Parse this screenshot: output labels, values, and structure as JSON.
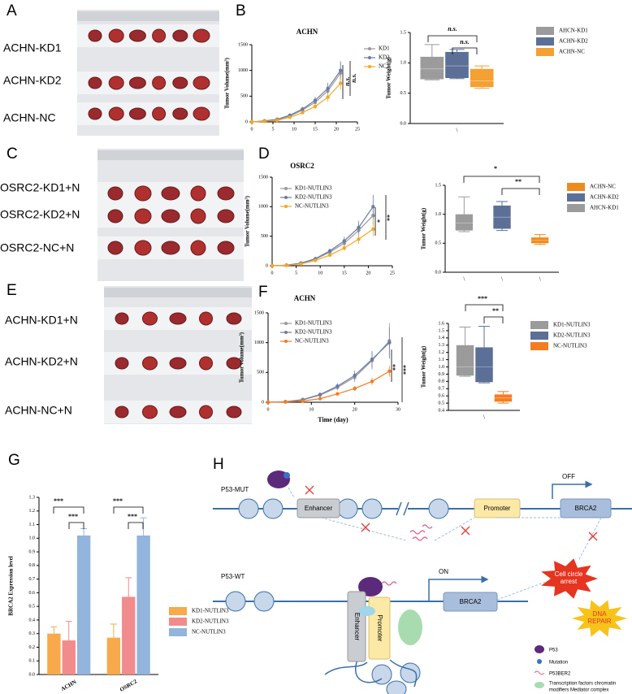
{
  "panels": {
    "A": {
      "letter": "A",
      "labels": [
        "ACHN-KD1",
        "ACHN-KD2",
        "ACHN-NC"
      ]
    },
    "C": {
      "letter": "C",
      "labels": [
        "OSRC2-KD1+N",
        "OSRC2-KD2+N",
        "OSRC2-NC+N"
      ]
    },
    "E": {
      "letter": "E",
      "labels": [
        "ACHN-KD1+N",
        "ACHN-KD2+N",
        "ACHN-NC+N"
      ]
    },
    "H": {
      "letter": "H",
      "p53_mut": "P53-MUT",
      "p53_wt": "P53-WT",
      "enhancer": "Enhancer",
      "promoter": "Promoter",
      "brca2_top": "BRCA2",
      "brca2_bottom": "BRCA2",
      "off": "OFF",
      "on": "ON",
      "enhancer_v": "Enhancer",
      "promoter_v": "Promoter",
      "arrest": [
        "Cell circle",
        "arrest"
      ],
      "repair": [
        "DNA",
        "REPAIR"
      ],
      "legend": [
        {
          "lines": [
            "P53"
          ]
        },
        {
          "lines": [
            "Mutation"
          ]
        },
        {
          "lines": [
            "P53BER2"
          ]
        },
        {
          "lines": [
            "Transcription factors chromatin",
            "modifiers Mediator complex"
          ]
        }
      ]
    }
  },
  "chart_data": [
    {
      "type": "line",
      "letter": "B",
      "title": "ACHN",
      "ylabel": "Tumor Volume(mm³)",
      "x": [
        0,
        3,
        6,
        9,
        12,
        15,
        18,
        21
      ],
      "xlim": [
        0,
        25
      ],
      "xticks": [
        0,
        5,
        10,
        15,
        20,
        25
      ],
      "ylim": [
        0,
        1500
      ],
      "yticks": [
        0,
        500,
        1000,
        1500
      ],
      "series": [
        {
          "name": "KD1",
          "color": "#9a9a9a",
          "values": [
            0,
            15,
            40,
            110,
            230,
            380,
            600,
            950
          ],
          "errors": [
            0,
            5,
            10,
            20,
            40,
            60,
            100,
            200
          ]
        },
        {
          "name": "KD2",
          "color": "#6a7ba6",
          "values": [
            0,
            20,
            50,
            130,
            250,
            420,
            650,
            1000
          ],
          "errors": [
            0,
            5,
            10,
            25,
            40,
            70,
            110,
            180
          ]
        },
        {
          "name": "NC",
          "color": "#f5a623",
          "values": [
            0,
            10,
            30,
            90,
            180,
            300,
            480,
            750
          ],
          "errors": [
            0,
            5,
            10,
            20,
            30,
            50,
            80,
            120
          ]
        }
      ],
      "annotations": [
        "n.s.",
        "n.s."
      ]
    },
    {
      "type": "box",
      "ylabel": "Tumor Weight(g)",
      "categories": [
        "\\"
      ],
      "ylim": [
        0,
        1.5
      ],
      "yticks": [
        {
          "value": 0,
          "label": "0.0"
        },
        0.5,
        {
          "value": 1,
          "label": "1.0"
        },
        1.5
      ],
      "series": [
        {
          "name": "AHCN-KD1",
          "color": "#9b9b9b",
          "values": [
            {
              "min": 0.72,
              "q1": 0.73,
              "median": 0.9,
              "q3": 1.1,
              "max": 1.3
            }
          ]
        },
        {
          "name": "ACHN-KD2",
          "color": "#5b6f97",
          "values": [
            {
              "min": 0.74,
              "q1": 0.75,
              "median": 0.95,
              "q3": 1.18,
              "max": 1.22
            }
          ]
        },
        {
          "name": "ACHN-NC",
          "color": "#f5a033",
          "values": [
            {
              "min": 0.58,
              "q1": 0.6,
              "median": 0.7,
              "q3": 0.9,
              "max": 0.95
            }
          ]
        }
      ],
      "annotations": [
        "n.s.",
        "n.s."
      ]
    },
    {
      "type": "line",
      "letter": "D",
      "title": "OSRC2",
      "ylabel": "Tumor Volume(mm³)",
      "x": [
        0,
        3,
        6,
        9,
        12,
        15,
        18,
        21
      ],
      "xlim": [
        0,
        25
      ],
      "xticks": [
        0,
        5,
        10,
        15,
        20,
        25
      ],
      "ylim": [
        0,
        1500
      ],
      "yticks": [
        0,
        500,
        1000,
        1500
      ],
      "series": [
        {
          "name": "KD1-NUTLIN3",
          "color": "#9a9a9a",
          "values": [
            0,
            10,
            40,
            110,
            230,
            380,
            600,
            850
          ],
          "errors": [
            0,
            5,
            10,
            20,
            40,
            60,
            100,
            150
          ]
        },
        {
          "name": "KD2-NUTLIN3",
          "color": "#6a7ba6",
          "values": [
            0,
            10,
            45,
            120,
            250,
            420,
            650,
            1000
          ],
          "errors": [
            0,
            5,
            10,
            25,
            40,
            70,
            110,
            200
          ]
        },
        {
          "name": "NC-NUTLIN3",
          "color": "#f5a623",
          "values": [
            0,
            5,
            30,
            90,
            180,
            300,
            450,
            620
          ],
          "errors": [
            0,
            5,
            10,
            20,
            30,
            50,
            80,
            120
          ]
        }
      ],
      "annotations": [
        "*",
        "**"
      ]
    },
    {
      "type": "box",
      "ylabel": "Tumor Weight(g)",
      "categories": [
        "\\",
        "\\",
        "\\"
      ],
      "ylim": [
        0,
        1.5
      ],
      "yticks": [
        {
          "value": 0,
          "label": "0.0"
        },
        0.5,
        {
          "value": 1,
          "label": "1.0"
        },
        1.5
      ],
      "series": [
        {
          "name": "ACHN-NC",
          "color": "#f08a1c",
          "values": [
            null,
            null,
            {
              "min": 0.48,
              "q1": 0.5,
              "median": 0.55,
              "q3": 0.6,
              "max": 0.65
            }
          ]
        },
        {
          "name": "ACHN-KD2",
          "color": "#5b6f97",
          "values": [
            null,
            {
              "min": 0.72,
              "q1": 0.75,
              "median": 0.95,
              "q3": 1.15,
              "max": 1.22
            },
            null
          ]
        },
        {
          "name": "AHCN-KD1",
          "color": "#9b9b9b",
          "values": [
            {
              "min": 0.7,
              "q1": 0.72,
              "median": 0.85,
              "q3": 1.0,
              "max": 1.3
            },
            null,
            null
          ]
        }
      ],
      "annotations": [
        "*",
        "**"
      ]
    },
    {
      "type": "line",
      "letter": "F",
      "title": "ACHN",
      "ylabel": "Tumor volume(mm³)",
      "xlabel": "Time (day)",
      "x": [
        0,
        4,
        8,
        12,
        16,
        20,
        24,
        28
      ],
      "xlim": [
        0,
        30
      ],
      "xticks": [
        0,
        10,
        20,
        30
      ],
      "ylim": [
        0,
        1500
      ],
      "yticks": [
        0,
        500,
        1000,
        1500
      ],
      "series": [
        {
          "name": "KD1-NUTLIN3",
          "color": "#9a9a9a",
          "values": [
            0,
            10,
            40,
            120,
            250,
            420,
            700,
            1030
          ],
          "errors": [
            0,
            5,
            10,
            30,
            50,
            80,
            150,
            300
          ]
        },
        {
          "name": "KD2-NUTLIN3",
          "color": "#6a7ba6",
          "values": [
            0,
            10,
            45,
            130,
            270,
            450,
            720,
            1000
          ],
          "errors": [
            0,
            5,
            10,
            30,
            50,
            80,
            140,
            260
          ]
        },
        {
          "name": "NC-NUTLIN3",
          "color": "#f57c1f",
          "values": [
            0,
            5,
            20,
            60,
            140,
            230,
            350,
            520
          ],
          "errors": [
            0,
            3,
            8,
            15,
            25,
            40,
            60,
            90
          ]
        }
      ],
      "annotations": [
        "**",
        "***"
      ]
    },
    {
      "type": "box",
      "ylabel": "Tumor Weight(g)",
      "categories": [
        "\\"
      ],
      "ylim": [
        0.4,
        1.6
      ],
      "yticks": [
        0.4,
        0.5,
        0.6,
        0.7,
        0.8,
        0.9,
        {
          "value": 1,
          "label": "1.0"
        },
        1.1,
        1.2,
        1.3,
        1.4,
        1.5,
        1.6
      ],
      "series": [
        {
          "name": "KD1-NUTLIN3",
          "color": "#9b9b9b",
          "values": [
            {
              "min": 0.87,
              "q1": 0.88,
              "median": 1.0,
              "q3": 1.3,
              "max": 1.55
            }
          ]
        },
        {
          "name": "KD2-NUTLIN3",
          "color": "#5b6f97",
          "values": [
            {
              "min": 0.78,
              "q1": 0.79,
              "median": 1.0,
              "q3": 1.27,
              "max": 1.56
            }
          ]
        },
        {
          "name": "NC-NUTLIN3",
          "color": "#f57c1f",
          "values": [
            {
              "min": 0.5,
              "q1": 0.52,
              "median": 0.57,
              "q3": 0.62,
              "max": 0.66
            }
          ]
        }
      ],
      "annotations": [
        "***",
        "**"
      ]
    },
    {
      "type": "bar",
      "letter": "G",
      "ylabel": "BRCA2 Expression level",
      "categories": [
        "ACHN",
        "OSRC2"
      ],
      "ylim": [
        0,
        1.3
      ],
      "yticks": [
        {
          "value": 0,
          "label": "0.0"
        },
        0.1,
        0.2,
        0.3,
        0.4,
        0.5,
        0.6,
        0.7,
        0.8,
        0.9,
        {
          "value": 1,
          "label": "1.0"
        },
        1.1,
        1.2,
        1.3
      ],
      "series": [
        {
          "name": "KD1-NUTLIN3",
          "color": "#f7a94b",
          "values": [
            0.3,
            0.27
          ],
          "errors": [
            0.05,
            0.1
          ]
        },
        {
          "name": "KD2-NUTLIN3",
          "color": "#f28b8b",
          "values": [
            0.25,
            0.57
          ],
          "errors": [
            0.14,
            0.14
          ]
        },
        {
          "name": "NC-NUTLIN3",
          "color": "#93b4dc",
          "values": [
            1.02,
            1.02
          ],
          "errors": [
            0.05,
            0.13
          ]
        }
      ],
      "annotations": [
        "***",
        "***",
        "***",
        "***"
      ]
    }
  ]
}
